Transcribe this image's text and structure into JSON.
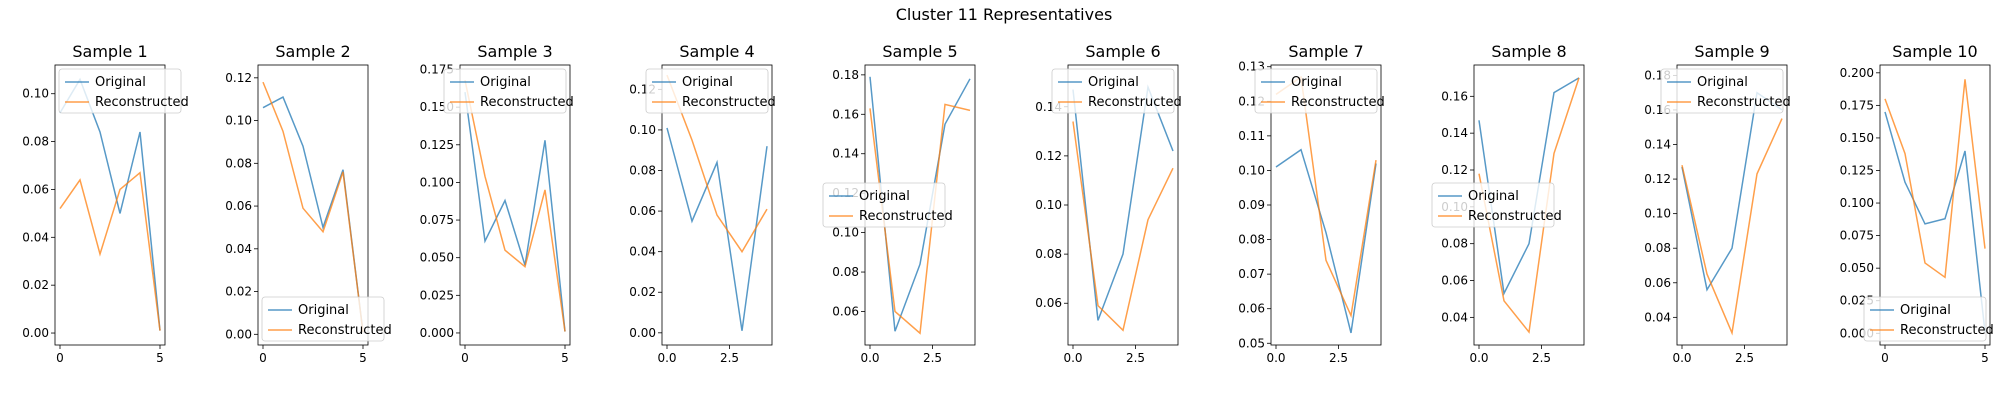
{
  "figure": {
    "suptitle": "Cluster 11 Representatives"
  },
  "colors": {
    "original": "#1f77b4",
    "reconstructed": "#ff7f0e"
  },
  "chart_data": [
    {
      "type": "line",
      "title": "Sample 1",
      "ylim": [
        -0.005,
        0.112
      ],
      "xlim": [
        -0.25,
        5.25
      ],
      "xticks": [
        0,
        5
      ],
      "xtick_labels": [
        "0",
        "5"
      ],
      "yticks": [
        0,
        0.02,
        0.04,
        0.06,
        0.08,
        0.1
      ],
      "ytick_labels": [
        "0.00",
        "0.02",
        "0.04",
        "0.06",
        "0.08",
        "0.10"
      ],
      "legend_loc": "upper-left",
      "series": [
        {
          "name": "Original",
          "x": [
            0,
            1,
            2,
            3,
            4,
            5
          ],
          "values": [
            0.092,
            0.106,
            0.084,
            0.05,
            0.084,
            0.001
          ]
        },
        {
          "name": "Reconstructed",
          "x": [
            0,
            1,
            2,
            3,
            4,
            5
          ],
          "values": [
            0.052,
            0.064,
            0.033,
            0.06,
            0.067,
            0.001
          ]
        }
      ]
    },
    {
      "type": "line",
      "title": "Sample 2",
      "ylim": [
        -0.005,
        0.126
      ],
      "xlim": [
        -0.25,
        5.25
      ],
      "xticks": [
        0,
        5
      ],
      "xtick_labels": [
        "0",
        "5"
      ],
      "yticks": [
        0,
        0.02,
        0.04,
        0.06,
        0.08,
        0.1,
        0.12
      ],
      "ytick_labels": [
        "0.00",
        "0.02",
        "0.04",
        "0.06",
        "0.08",
        "0.10",
        "0.12"
      ],
      "legend_loc": "lower-left",
      "series": [
        {
          "name": "Original",
          "x": [
            0,
            1,
            2,
            3,
            4,
            5
          ],
          "values": [
            0.106,
            0.111,
            0.088,
            0.05,
            0.077,
            0.001
          ]
        },
        {
          "name": "Reconstructed",
          "x": [
            0,
            1,
            2,
            3,
            4,
            5
          ],
          "values": [
            0.118,
            0.095,
            0.059,
            0.048,
            0.076,
            0.001
          ]
        }
      ]
    },
    {
      "type": "line",
      "title": "Sample 3",
      "ylim": [
        -0.008,
        0.178
      ],
      "xlim": [
        -0.25,
        5.25
      ],
      "xticks": [
        0,
        5
      ],
      "xtick_labels": [
        "0",
        "5"
      ],
      "yticks": [
        0,
        0.025,
        0.05,
        0.075,
        0.1,
        0.125,
        0.15,
        0.175
      ],
      "ytick_labels": [
        "0.000",
        "0.025",
        "0.050",
        "0.075",
        "0.100",
        "0.125",
        "0.150",
        "0.175"
      ],
      "legend_loc": "upper-right",
      "series": [
        {
          "name": "Original",
          "x": [
            0,
            1,
            2,
            3,
            4,
            5
          ],
          "values": [
            0.16,
            0.061,
            0.088,
            0.045,
            0.128,
            0.001
          ]
        },
        {
          "name": "Reconstructed",
          "x": [
            0,
            1,
            2,
            3,
            4,
            5
          ],
          "values": [
            0.168,
            0.104,
            0.055,
            0.044,
            0.095,
            0.001
          ]
        }
      ]
    },
    {
      "type": "line",
      "title": "Sample 4",
      "ylim": [
        -0.006,
        0.132
      ],
      "xlim": [
        -0.2,
        4.2
      ],
      "xticks": [
        0,
        2.5
      ],
      "xtick_labels": [
        "0.0",
        "2.5"
      ],
      "yticks": [
        0,
        0.02,
        0.04,
        0.06,
        0.08,
        0.1,
        0.12
      ],
      "ytick_labels": [
        "0.00",
        "0.02",
        "0.04",
        "0.06",
        "0.08",
        "0.10",
        "0.12"
      ],
      "legend_loc": "upper-right",
      "series": [
        {
          "name": "Original",
          "x": [
            0,
            1,
            2,
            3,
            4
          ],
          "values": [
            0.101,
            0.055,
            0.084,
            0.001,
            0.092
          ]
        },
        {
          "name": "Reconstructed",
          "x": [
            0,
            1,
            2,
            3,
            4
          ],
          "values": [
            0.127,
            0.095,
            0.058,
            0.04,
            0.061
          ]
        }
      ]
    },
    {
      "type": "line",
      "title": "Sample 5",
      "ylim": [
        0.043,
        0.185
      ],
      "xlim": [
        -0.2,
        4.2
      ],
      "xticks": [
        0,
        2.5
      ],
      "xtick_labels": [
        "0.0",
        "2.5"
      ],
      "yticks": [
        0.06,
        0.08,
        0.1,
        0.12,
        0.14,
        0.16,
        0.18
      ],
      "ytick_labels": [
        "0.06",
        "0.08",
        "0.10",
        "0.12",
        "0.14",
        "0.16",
        "0.18"
      ],
      "legend_loc": "center-left",
      "series": [
        {
          "name": "Original",
          "x": [
            0,
            1,
            2,
            3,
            4
          ],
          "values": [
            0.179,
            0.05,
            0.084,
            0.155,
            0.178
          ]
        },
        {
          "name": "Reconstructed",
          "x": [
            0,
            1,
            2,
            3,
            4
          ],
          "values": [
            0.163,
            0.06,
            0.049,
            0.165,
            0.162
          ]
        }
      ]
    },
    {
      "type": "line",
      "title": "Sample 6",
      "ylim": [
        0.043,
        0.157
      ],
      "xlim": [
        -0.2,
        4.2
      ],
      "xticks": [
        0,
        2.5
      ],
      "xtick_labels": [
        "0.0",
        "2.5"
      ],
      "yticks": [
        0.06,
        0.08,
        0.1,
        0.12,
        0.14
      ],
      "ytick_labels": [
        "0.06",
        "0.08",
        "0.10",
        "0.12",
        "0.14"
      ],
      "legend_loc": "upper-right",
      "series": [
        {
          "name": "Original",
          "x": [
            0,
            1,
            2,
            3,
            4
          ],
          "values": [
            0.147,
            0.053,
            0.08,
            0.148,
            0.122
          ]
        },
        {
          "name": "Reconstructed",
          "x": [
            0,
            1,
            2,
            3,
            4
          ],
          "values": [
            0.134,
            0.059,
            0.049,
            0.094,
            0.115
          ]
        }
      ]
    },
    {
      "type": "line",
      "title": "Sample 7",
      "ylim": [
        0.0495,
        0.1305
      ],
      "xlim": [
        -0.2,
        4.2
      ],
      "xticks": [
        0,
        2.5
      ],
      "xtick_labels": [
        "0.0",
        "2.5"
      ],
      "yticks": [
        0.05,
        0.06,
        0.07,
        0.08,
        0.09,
        0.1,
        0.11,
        0.12,
        0.13
      ],
      "ytick_labels": [
        "0.05",
        "0.06",
        "0.07",
        "0.08",
        "0.09",
        "0.10",
        "0.11",
        "0.12",
        "0.13"
      ],
      "legend_loc": "upper-right",
      "series": [
        {
          "name": "Original",
          "x": [
            0,
            1,
            2,
            3,
            4
          ],
          "values": [
            0.101,
            0.106,
            0.082,
            0.053,
            0.102
          ]
        },
        {
          "name": "Reconstructed",
          "x": [
            0,
            1,
            2,
            3,
            4
          ],
          "values": [
            0.122,
            0.127,
            0.074,
            0.058,
            0.103
          ]
        }
      ]
    },
    {
      "type": "line",
      "title": "Sample 8",
      "ylim": [
        0.025,
        0.177
      ],
      "xlim": [
        -0.2,
        4.2
      ],
      "xticks": [
        0,
        2.5
      ],
      "xtick_labels": [
        "0.0",
        "2.5"
      ],
      "yticks": [
        0.04,
        0.06,
        0.08,
        0.1,
        0.12,
        0.14,
        0.16
      ],
      "ytick_labels": [
        "0.04",
        "0.06",
        "0.08",
        "0.10",
        "0.12",
        "0.14",
        "0.16"
      ],
      "legend_loc": "center-left",
      "series": [
        {
          "name": "Original",
          "x": [
            0,
            1,
            2,
            3,
            4
          ],
          "values": [
            0.147,
            0.053,
            0.08,
            0.162,
            0.17
          ]
        },
        {
          "name": "Reconstructed",
          "x": [
            0,
            1,
            2,
            3,
            4
          ],
          "values": [
            0.118,
            0.049,
            0.032,
            0.129,
            0.17
          ]
        }
      ]
    },
    {
      "type": "line",
      "title": "Sample 9",
      "ylim": [
        0.024,
        0.186
      ],
      "xlim": [
        -0.2,
        4.2
      ],
      "xticks": [
        0,
        2.5
      ],
      "xtick_labels": [
        "0.0",
        "2.5"
      ],
      "yticks": [
        0.04,
        0.06,
        0.08,
        0.1,
        0.12,
        0.14,
        0.16,
        0.18
      ],
      "ytick_labels": [
        "0.04",
        "0.06",
        "0.08",
        "0.10",
        "0.12",
        "0.14",
        "0.16",
        "0.18"
      ],
      "legend_loc": "upper-right",
      "series": [
        {
          "name": "Original",
          "x": [
            0,
            1,
            2,
            3,
            4
          ],
          "values": [
            0.127,
            0.056,
            0.08,
            0.17,
            0.16
          ]
        },
        {
          "name": "Reconstructed",
          "x": [
            0,
            1,
            2,
            3,
            4
          ],
          "values": [
            0.128,
            0.065,
            0.031,
            0.123,
            0.155
          ]
        }
      ]
    },
    {
      "type": "line",
      "title": "Sample 10",
      "ylim": [
        -0.009,
        0.206
      ],
      "xlim": [
        -0.25,
        5.25
      ],
      "xticks": [
        0,
        5
      ],
      "xtick_labels": [
        "0",
        "5"
      ],
      "yticks": [
        0,
        0.025,
        0.05,
        0.075,
        0.1,
        0.125,
        0.15,
        0.175,
        0.2
      ],
      "ytick_labels": [
        "0.000",
        "0.025",
        "0.050",
        "0.075",
        "0.100",
        "0.125",
        "0.150",
        "0.175",
        "0.200"
      ],
      "legend_loc": "lower-right",
      "series": [
        {
          "name": "Original",
          "x": [
            0,
            1,
            2,
            3,
            4,
            5
          ],
          "values": [
            0.17,
            0.116,
            0.084,
            0.088,
            0.14,
            0.001
          ]
        },
        {
          "name": "Reconstructed",
          "x": [
            0,
            1,
            2,
            3,
            4,
            5
          ],
          "values": [
            0.18,
            0.138,
            0.054,
            0.043,
            0.195,
            0.065
          ]
        }
      ]
    }
  ]
}
